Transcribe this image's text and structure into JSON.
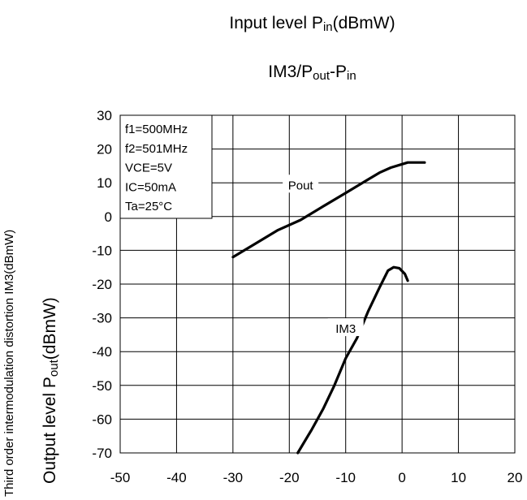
{
  "title_main": "Input level P",
  "title_main_sub": "in",
  "title_main_suffix": "(dBmW)",
  "title_second_a": "IM3/P",
  "title_second_sub1": "out",
  "title_second_b": "-P",
  "title_second_sub2": "in",
  "y_outer_label": "Third order intermodulation distortion IM3(dBmW)",
  "y_inner_label_a": "Output level P",
  "y_inner_label_sub": "out",
  "y_inner_label_b": "(dBmW)",
  "conditions": [
    "f1=500MHz",
    "f2=501MHz",
    "VCE=5V",
    "IC=50mA",
    "Ta=25°C"
  ],
  "chart_data": {
    "type": "line",
    "xlim": [
      -50,
      20
    ],
    "ylim": [
      -70,
      30
    ],
    "x_ticks": [
      -50,
      -40,
      -30,
      -20,
      -10,
      0,
      10,
      20
    ],
    "y_ticks": [
      30,
      20,
      10,
      0,
      -10,
      -20,
      -30,
      -40,
      -50,
      -60,
      -70
    ],
    "grid": true,
    "series": [
      {
        "name": "Pout",
        "x": [
          -30,
          -26,
          -22,
          -18,
          -14,
          -10,
          -6,
          -4,
          -2,
          0,
          1,
          4
        ],
        "y": [
          -12,
          -8,
          -4,
          -1,
          3,
          7,
          11,
          13,
          14.5,
          15.5,
          16,
          16
        ]
      },
      {
        "name": "IM3",
        "x": [
          -18.5,
          -16,
          -14,
          -12,
          -10,
          -8,
          -6,
          -4,
          -2.5,
          -1.5,
          -0.5,
          0.5,
          1
        ],
        "y": [
          -70,
          -63,
          -57,
          -50,
          -42,
          -36,
          -28,
          -21,
          -16,
          -15,
          -15.3,
          -17,
          -19
        ]
      }
    ]
  }
}
